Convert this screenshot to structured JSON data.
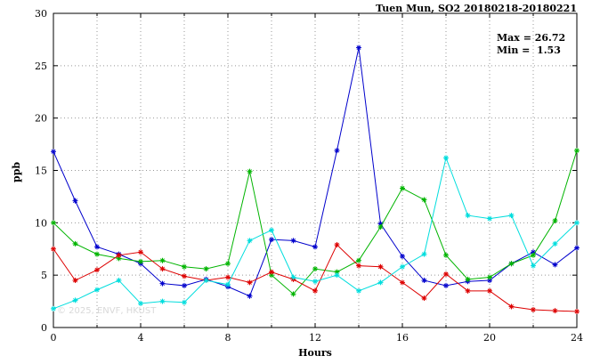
{
  "title": "Tuen Mun, SO2 20180218-20180221",
  "annotation": {
    "max_label": "Max = 26.72",
    "min_label": "Min =  1.53"
  },
  "watermark": "© 2025, ENVF, HKUST",
  "chart_data": {
    "type": "line",
    "title": "Tuen Mun, SO2 20180218-20180221",
    "xlabel": "Hours",
    "ylabel": "ppb",
    "xlim": [
      0,
      24
    ],
    "ylim": [
      0,
      30
    ],
    "xticks": [
      0,
      4,
      8,
      12,
      16,
      20,
      24
    ],
    "yticks": [
      0,
      5,
      10,
      15,
      20,
      25,
      30
    ],
    "xgrid_step": 2,
    "grid": true,
    "legend_position": "none",
    "max": 26.72,
    "min": 1.53,
    "x": [
      0,
      1,
      2,
      3,
      4,
      5,
      6,
      7,
      8,
      9,
      10,
      11,
      12,
      13,
      14,
      15,
      16,
      17,
      18,
      19,
      20,
      21,
      22,
      23,
      24
    ],
    "series": [
      {
        "name": "blue",
        "color": "#0000cc",
        "values": [
          16.8,
          12.1,
          7.7,
          7.0,
          6.1,
          4.2,
          4.0,
          4.6,
          3.9,
          3.0,
          8.4,
          8.3,
          7.7,
          16.9,
          26.72,
          9.9,
          6.8,
          4.5,
          4.0,
          4.4,
          4.5,
          6.1,
          7.2,
          6.0,
          7.6
        ]
      },
      {
        "name": "green",
        "color": "#00b400",
        "values": [
          10.0,
          8.0,
          7.0,
          6.6,
          6.3,
          6.4,
          5.8,
          5.6,
          6.1,
          14.9,
          5.0,
          3.2,
          5.6,
          5.3,
          6.4,
          9.6,
          13.3,
          12.2,
          6.9,
          4.6,
          4.8,
          6.1,
          6.9,
          10.2,
          16.9
        ]
      },
      {
        "name": "red",
        "color": "#dd0000",
        "values": [
          7.5,
          4.5,
          5.5,
          6.9,
          7.2,
          5.6,
          4.9,
          4.5,
          4.8,
          4.3,
          5.3,
          4.6,
          3.5,
          7.9,
          5.9,
          5.8,
          4.3,
          2.8,
          5.1,
          3.5,
          3.5,
          2.0,
          1.7,
          1.6,
          1.53
        ]
      },
      {
        "name": "cyan",
        "color": "#00dddd",
        "values": [
          1.8,
          2.6,
          3.6,
          4.5,
          2.3,
          2.5,
          2.4,
          4.5,
          4.1,
          8.3,
          9.3,
          4.8,
          4.4,
          5.0,
          3.5,
          4.3,
          5.8,
          7.0,
          16.2,
          10.7,
          10.4,
          10.7,
          5.9,
          8.0,
          10.0
        ]
      }
    ]
  }
}
